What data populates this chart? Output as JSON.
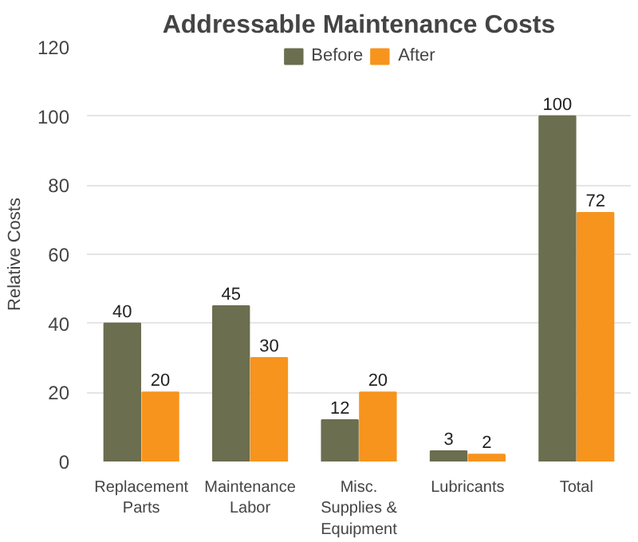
{
  "chart_data": {
    "type": "bar",
    "title": "Addressable Maintenance Costs",
    "ylabel": "Relative Costs",
    "categories": [
      "Replacement\nParts",
      "Maintenance\nLabor",
      "Misc.\nSupplies &\nEquipment",
      "Lubricants",
      "Total"
    ],
    "series": [
      {
        "name": "Before",
        "color": "#6b6e4f",
        "values": [
          40,
          45,
          12,
          3,
          100
        ]
      },
      {
        "name": "After",
        "color": "#f7941d",
        "values": [
          20,
          30,
          20,
          2,
          72
        ]
      }
    ],
    "ylim": [
      0,
      120
    ],
    "yticks": [
      0,
      20,
      40,
      60,
      80,
      100,
      120
    ],
    "grid": "y",
    "legend": "top",
    "data_labels": true
  }
}
